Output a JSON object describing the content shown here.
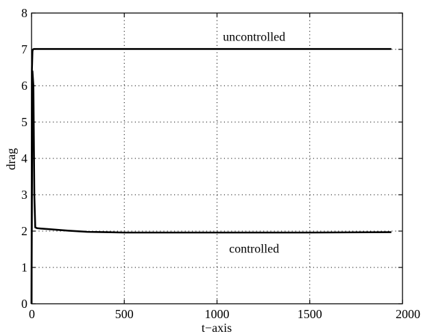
{
  "chart_data": {
    "type": "line",
    "title": "",
    "xlabel": "t−axis",
    "ylabel": "drag",
    "xlim": [
      0,
      2000
    ],
    "ylim": [
      0,
      8
    ],
    "xticks": [
      0,
      500,
      1000,
      1500,
      2000
    ],
    "yticks": [
      0,
      1,
      2,
      3,
      4,
      5,
      6,
      7,
      8
    ],
    "grid": true,
    "series": [
      {
        "name": "uncontrolled",
        "x": [
          0,
          2,
          5,
          8,
          12,
          20,
          50,
          100,
          500,
          1000,
          1500,
          1940
        ],
        "y": [
          0,
          6.4,
          6.95,
          7.0,
          7.01,
          7.01,
          7.01,
          7.01,
          7.01,
          7.01,
          7.01,
          7.01
        ]
      },
      {
        "name": "controlled",
        "x": [
          0,
          5,
          10,
          15,
          20,
          30,
          50,
          100,
          200,
          300,
          400,
          500,
          600,
          800,
          1000,
          1500,
          1940
        ],
        "y": [
          0,
          6.4,
          6.0,
          3.0,
          2.1,
          2.08,
          2.07,
          2.05,
          2.01,
          1.98,
          1.97,
          1.96,
          1.96,
          1.96,
          1.96,
          1.96,
          1.97
        ]
      }
    ],
    "annotations": [
      {
        "text": "uncontrolled",
        "x": 1200,
        "y": 7.35
      },
      {
        "text": "controlled",
        "x": 1200,
        "y": 1.52
      }
    ]
  }
}
